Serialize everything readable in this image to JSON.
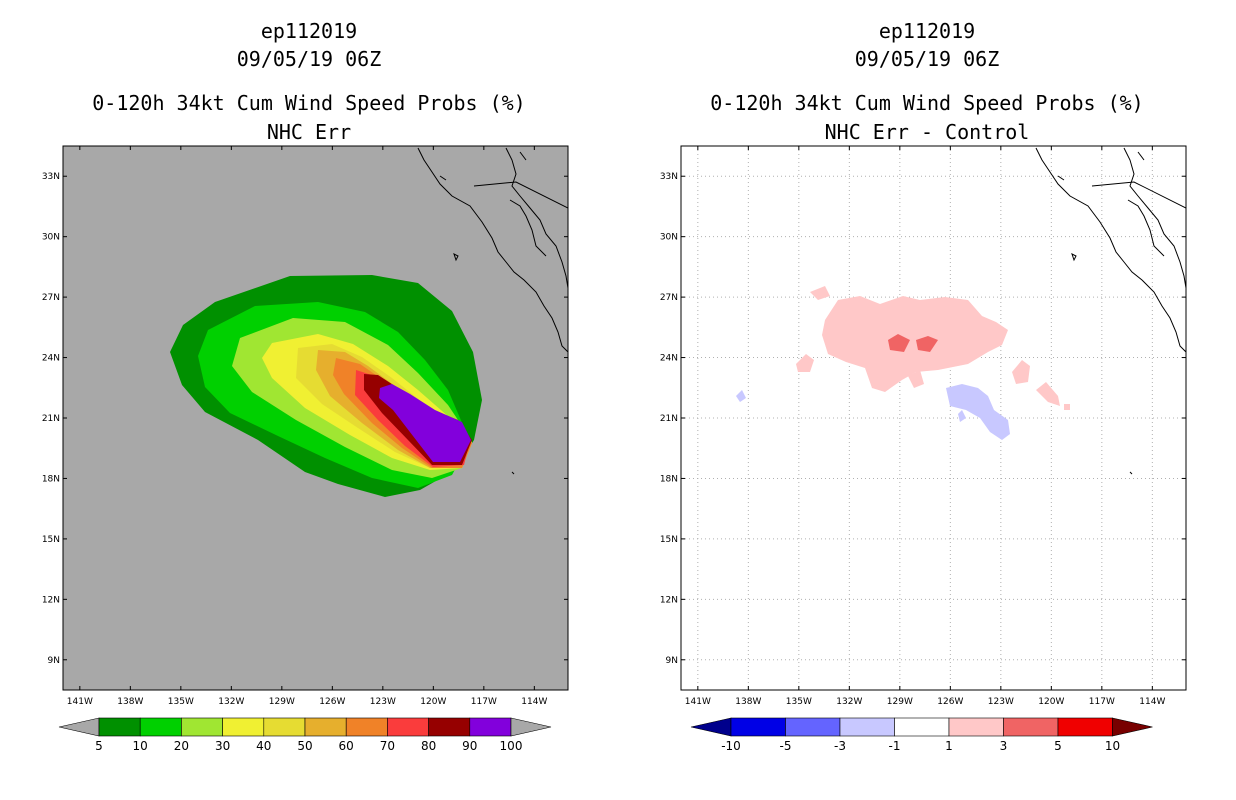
{
  "chart_data": [
    {
      "type": "filled-contour-map",
      "storm_id": "ep112019",
      "datetime": "09/05/19 06Z",
      "title": "0-120h 34kt Cum Wind Speed Probs (%)",
      "subtitle": "NHC Err",
      "lon_ticks": [
        "141W",
        "138W",
        "135W",
        "132W",
        "129W",
        "126W",
        "123W",
        "120W",
        "117W",
        "114W"
      ],
      "lat_ticks": [
        "9N",
        "12N",
        "15N",
        "18N",
        "21N",
        "24N",
        "27N",
        "30N",
        "33N"
      ],
      "lon_range": [
        -142,
        -112
      ],
      "lat_range": [
        7.5,
        34.5
      ],
      "colorbar": {
        "labels": [
          "5",
          "10",
          "20",
          "30",
          "40",
          "50",
          "60",
          "70",
          "80",
          "90",
          "100"
        ],
        "colors": [
          "#009000",
          "#00d000",
          "#a0e632",
          "#f0f032",
          "#e6dc32",
          "#e6af2d",
          "#f08228",
          "#fa3c3c",
          "#960000",
          "#8200dc"
        ],
        "under_color": "#a8a8a8",
        "over_color": "#a8a8a8"
      },
      "background_color": "#a8a8a8"
    },
    {
      "type": "filled-contour-map",
      "storm_id": "ep112019",
      "datetime": "09/05/19 06Z",
      "title": "0-120h 34kt Cum Wind Speed Probs (%)",
      "subtitle": "NHC Err - Control",
      "lon_ticks": [
        "141W",
        "138W",
        "135W",
        "132W",
        "129W",
        "126W",
        "123W",
        "120W",
        "117W",
        "114W"
      ],
      "lat_ticks": [
        "9N",
        "12N",
        "15N",
        "18N",
        "21N",
        "24N",
        "27N",
        "30N",
        "33N"
      ],
      "lon_range": [
        -142,
        -112
      ],
      "lat_range": [
        7.5,
        34.5
      ],
      "colorbar": {
        "labels": [
          "-10",
          "-5",
          "-3",
          "-1",
          "1",
          "3",
          "5",
          "10"
        ],
        "colors": [
          "#0000e6",
          "#6464ff",
          "#c8c8ff",
          "#ffffff",
          "#ffc8c8",
          "#f06464",
          "#f00000"
        ],
        "under_color": "#00008c",
        "over_color": "#780000"
      },
      "grid": true
    }
  ]
}
